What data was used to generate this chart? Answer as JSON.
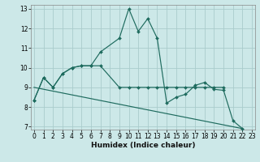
{
  "xlabel": "Humidex (Indice chaleur)",
  "xlim": [
    -0.3,
    23.3
  ],
  "ylim": [
    6.85,
    13.2
  ],
  "xticks": [
    0,
    1,
    2,
    3,
    4,
    5,
    6,
    7,
    8,
    9,
    10,
    11,
    12,
    13,
    14,
    15,
    16,
    17,
    18,
    19,
    20,
    21,
    22,
    23
  ],
  "yticks": [
    7,
    8,
    9,
    10,
    11,
    12,
    13
  ],
  "bg_color": "#cce8e8",
  "grid_color": "#aacccc",
  "line_color": "#1e6b5e",
  "curve1_x": [
    0,
    1,
    2,
    3,
    4,
    5,
    6,
    7,
    9,
    10,
    11,
    12,
    13,
    14,
    15,
    16,
    17,
    18,
    19,
    20,
    21,
    22
  ],
  "curve1_y": [
    8.35,
    9.5,
    9.0,
    9.7,
    10.0,
    10.1,
    10.1,
    10.8,
    11.5,
    13.0,
    11.85,
    12.5,
    11.5,
    8.2,
    8.5,
    8.65,
    9.1,
    9.25,
    8.9,
    8.85,
    7.3,
    6.9
  ],
  "curve2_x": [
    0,
    1,
    2,
    3,
    4,
    5,
    6,
    7,
    9,
    10,
    11,
    12,
    13,
    14,
    15,
    16,
    17,
    18,
    19,
    20
  ],
  "curve2_y": [
    8.35,
    9.5,
    9.0,
    9.7,
    10.0,
    10.1,
    10.1,
    10.1,
    9.0,
    9.0,
    9.0,
    9.0,
    9.0,
    9.0,
    9.0,
    9.0,
    9.0,
    9.0,
    9.0,
    9.0
  ],
  "line3_x": [
    0,
    22
  ],
  "line3_y": [
    9.0,
    6.9
  ],
  "tick_fontsize": 5.5,
  "xlabel_fontsize": 6.5,
  "marker_size": 2.0,
  "line_width": 0.85
}
